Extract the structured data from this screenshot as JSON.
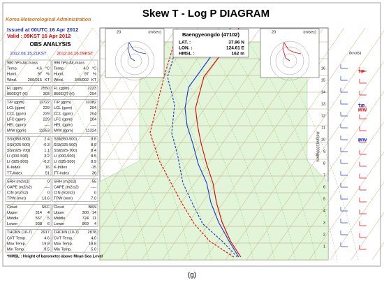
{
  "header": {
    "agency": "Korea Meteorological Administration",
    "issued": "Issued at 00UTC 16 Apr 2012",
    "valid": "Valid : 09KST 16 Apr 2012",
    "title": "Skew T - Log P DIAGRAM"
  },
  "obs": {
    "title": "OBS ANALYSIS",
    "columns": [
      "2012.04.15.21KST",
      "2012.04.16.09KST"
    ],
    "blocks": [
      [
        [
          [
            "980 hPa Air-mass"
          ],
          [
            "996 hPa Air-mass"
          ]
        ],
        [
          [
            "Temp.",
            "4.6",
            "°C"
          ],
          [
            "Temp.",
            "4.0",
            "°C"
          ]
        ],
        [
          [
            "Humi.",
            "97",
            "%"
          ],
          [
            "Humi.",
            "97",
            "%"
          ]
        ],
        [
          [
            "Wind.",
            "200/015",
            "KT"
          ],
          [
            "Wind.",
            "340/002",
            "KT"
          ]
        ]
      ],
      [
        [
          [
            "FL (gpm)",
            "2550"
          ],
          [
            "FL (gpm)",
            "2223"
          ]
        ],
        [
          [
            "850EQT (K)",
            "303"
          ],
          [
            "850EQT (K)",
            "294"
          ]
        ]
      ],
      [
        [
          [
            "T/P (gpm)",
            "11722"
          ],
          [
            "T/P (gpm)",
            "10382"
          ]
        ],
        [
          [
            "LCL (gpm)",
            "229"
          ],
          [
            "LCL (gpm)",
            "204"
          ]
        ],
        [
          [
            "CCL (gpm)",
            "229"
          ],
          [
            "CCL (gpm)",
            "204"
          ]
        ],
        [
          [
            "LFC (gpm)",
            "229"
          ],
          [
            "LFC (gpm)",
            "204"
          ]
        ],
        [
          [
            "HEL (gpm)",
            "----"
          ],
          [
            "HEL (gpm)",
            "----"
          ]
        ],
        [
          [
            "M/W (gpm)",
            "11353"
          ],
          [
            "M/W (gpm)",
            "11324"
          ]
        ]
      ],
      [
        [
          [
            "SSI(850-500)",
            "2.4"
          ],
          [
            "SSI(850-500)",
            "8.8"
          ]
        ],
        [
          [
            "SSI(925-500)",
            "-0.3"
          ],
          [
            "SSI(925-500)",
            "8.9"
          ]
        ],
        [
          [
            "SSI(925-700)",
            "1.1"
          ],
          [
            "SSI(925-700)",
            "8.4"
          ]
        ],
        [
          [
            "LI (000-500)",
            "2.2"
          ],
          [
            "LI (000-500)",
            "8.5"
          ]
        ],
        [
          [
            "LI (925-500)",
            "-0.2"
          ],
          [
            "LI (925-500)",
            "8.9"
          ]
        ],
        [
          [
            "K-Index",
            "16"
          ],
          [
            "K-Index",
            "-15"
          ]
        ],
        [
          [
            "TT-Index",
            "51"
          ],
          [
            "TT-Index",
            "36"
          ]
        ]
      ],
      [
        [
          [
            "SRH (m2/s2)",
            "0"
          ],
          [
            "SRH (m2/s2)",
            "55"
          ]
        ],
        [
          [
            "CAPE (m2/s2)",
            "----"
          ],
          [
            "CAPE (m2/s2)",
            "----"
          ]
        ],
        [
          [
            "CIN (m2/s2)",
            "0"
          ],
          [
            "CIN (m2/s2)",
            "0"
          ]
        ],
        [
          [
            "TPW (mm)",
            "13.6"
          ],
          [
            "TPW (mm)",
            "7.0"
          ]
        ]
      ],
      [
        [
          [
            "Cloud",
            "SKC"
          ],
          [
            "Cloud",
            "BKN"
          ]
        ],
        [
          [
            "Upper",
            "314",
            "4"
          ],
          [
            "Upper",
            "300",
            "14"
          ]
        ],
        [
          [
            "Middle",
            "567",
            "5"
          ],
          [
            "Middle",
            "724",
            "11"
          ]
        ],
        [
          [
            "Lower",
            "938",
            "6"
          ],
          [
            "Lower",
            "969",
            "4"
          ]
        ]
      ],
      [
        [
          [
            "THCKN (10-7)",
            "2917"
          ],
          [
            "THCKN (10-7)",
            "2878"
          ]
        ],
        [
          [
            "CVT Temp.",
            "4.6"
          ],
          [
            "CVT Temp.",
            "4.0"
          ]
        ],
        [
          [
            "Max Temp.",
            "19.9"
          ],
          [
            "Max Temp.",
            "18.8"
          ]
        ],
        [
          [
            "Min Temp.",
            "9.5"
          ],
          [
            "Min Temp.",
            "5.0"
          ]
        ]
      ]
    ],
    "footnote": "*HMSL : Height of barometer above Mean Sea Level"
  },
  "station": {
    "name": "Baengyeongdo (47102)",
    "rows": [
      [
        "LAT. :",
        "37.96 N"
      ],
      [
        "LON. :",
        "124.61 E"
      ],
      [
        "HMSL :",
        "162 m"
      ]
    ]
  },
  "hodograph": {
    "unit": "(m/sec)",
    "ring": "20"
  },
  "wind_panel": {
    "unit": "(knots)",
    "axis": "Height(1000gpm)",
    "heights": [
      "16",
      "15",
      "14",
      "13",
      "12",
      "11",
      "10",
      "9",
      "8",
      "7",
      "6",
      "5",
      "4",
      "3",
      "2",
      "1"
    ],
    "markers": [
      {
        "text": "T/P",
        "color": "#e00000"
      },
      {
        "text": "T/P",
        "color": "#0020e0"
      },
      {
        "text": "M/W",
        "color": "#e00000"
      },
      {
        "text": "M/W",
        "color": "#0020e0"
      }
    ]
  },
  "caption": "(g)"
}
